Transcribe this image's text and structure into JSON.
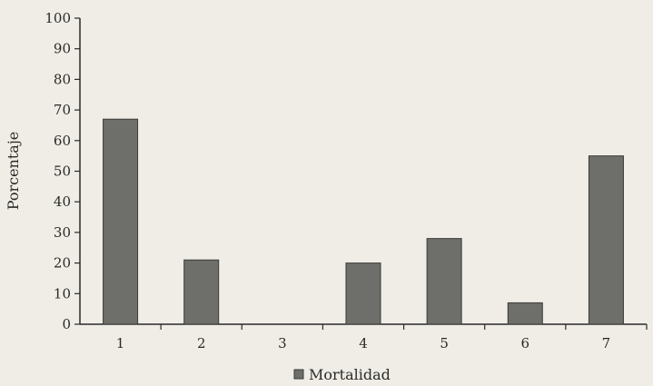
{
  "chart_data": {
    "type": "bar",
    "categories": [
      "1",
      "2",
      "3",
      "4",
      "5",
      "6",
      "7"
    ],
    "series": [
      {
        "name": "Mortalidad",
        "values": [
          67,
          21,
          0,
          20,
          28,
          7,
          55
        ]
      }
    ],
    "ylabel": "Porcentaje",
    "xlabel": "",
    "ylim": [
      0,
      100
    ],
    "yticks": [
      0,
      10,
      20,
      30,
      40,
      50,
      60,
      70,
      80,
      90,
      100
    ],
    "grid": false,
    "legend_position": "bottom-center",
    "colors": {
      "bar_fill": "#6e6e6a",
      "bar_stroke": "#3a3a38",
      "axis": "#2a2a28",
      "background": "#efede6"
    }
  }
}
